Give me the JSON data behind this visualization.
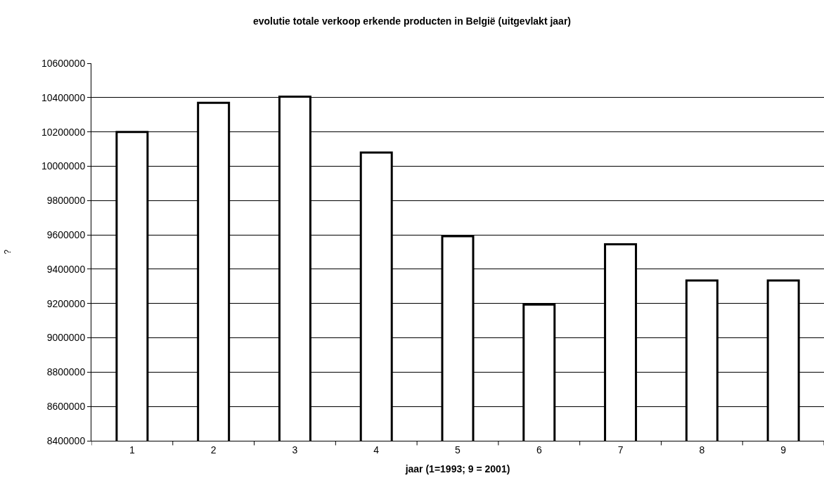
{
  "chart_data": {
    "type": "bar",
    "title": "evolutie totale verkoop erkende producten in België (uitgevlakt jaar)",
    "xlabel": "jaar (1=1993; 9 = 2001)",
    "ylabel": "?",
    "categories": [
      "1",
      "2",
      "3",
      "4",
      "5",
      "6",
      "7",
      "8",
      "9"
    ],
    "values": [
      10200000,
      10370000,
      10405000,
      10080000,
      9592000,
      9194000,
      9545000,
      9334000,
      9334000
    ],
    "color": "#ffffff",
    "ylim": [
      8400000,
      10600000
    ],
    "yticks": [
      8400000,
      8600000,
      8800000,
      9000000,
      9200000,
      9400000,
      9600000,
      9800000,
      10000000,
      10200000,
      10400000,
      10600000
    ],
    "grid": "y"
  }
}
